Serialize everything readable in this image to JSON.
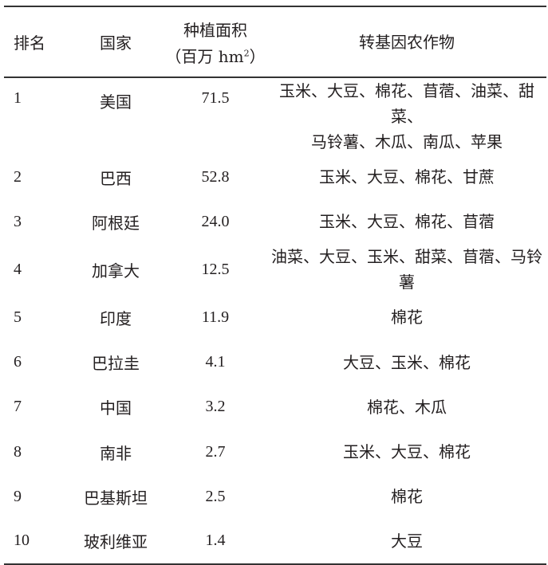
{
  "headers": {
    "rank": "排名",
    "country": "国家",
    "area_line1": "种植面积",
    "area_unit_open": "（百万 hm",
    "area_unit_sup": "2",
    "area_unit_close": "）",
    "crops": "转基因农作物"
  },
  "rows": [
    {
      "rank": "1",
      "country": "美国",
      "area": "71.5",
      "crops_line1": "玉米、大豆、棉花、苜蓿、油菜、甜菜、",
      "crops_line2": "马铃薯、木瓜、南瓜、苹果"
    },
    {
      "rank": "2",
      "country": "巴西",
      "area": "52.8",
      "crops_line1": "玉米、大豆、棉花、甘蔗"
    },
    {
      "rank": "3",
      "country": "阿根廷",
      "area": "24.0",
      "crops_line1": "玉米、大豆、棉花、苜蓿"
    },
    {
      "rank": "4",
      "country": "加拿大",
      "area": "12.5",
      "crops_line1": "油菜、大豆、玉米、甜菜、苜蓿、马铃薯"
    },
    {
      "rank": "5",
      "country": "印度",
      "area": "11.9",
      "crops_line1": "棉花"
    },
    {
      "rank": "6",
      "country": "巴拉圭",
      "area": "4.1",
      "crops_line1": "大豆、玉米、棉花"
    },
    {
      "rank": "7",
      "country": "中国",
      "area": "3.2",
      "crops_line1": "棉花、木瓜"
    },
    {
      "rank": "8",
      "country": "南非",
      "area": "2.7",
      "crops_line1": "玉米、大豆、棉花"
    },
    {
      "rank": "9",
      "country": "巴基斯坦",
      "area": "2.5",
      "crops_line1": "棉花"
    },
    {
      "rank": "10",
      "country": "玻利维亚",
      "area": "1.4",
      "crops_line1": "大豆"
    }
  ]
}
